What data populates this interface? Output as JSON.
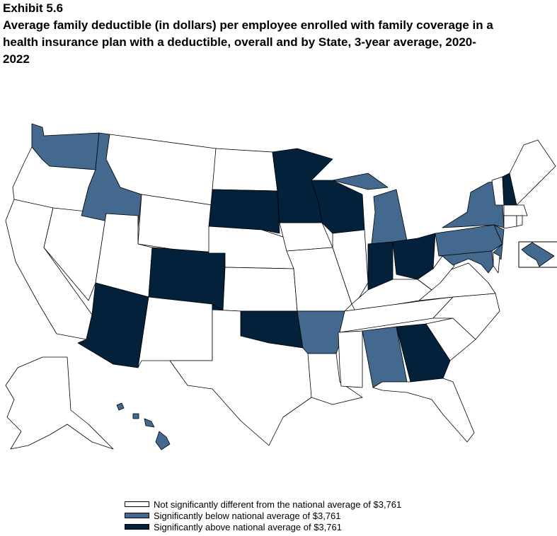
{
  "exhibit": "Exhibit 5.6",
  "title": "Average family deductible (in dollars) per employee enrolled with family coverage in a health insurance plan with a deductible, overall and by State, 3-year average, 2020-2022",
  "colors": {
    "not_significant": "#ffffff",
    "below": "#43698f",
    "above": "#03213b"
  },
  "legend": [
    {
      "category": "not_significant",
      "label": "Not significantly different from the national average of $3,761"
    },
    {
      "category": "below",
      "label": "Significantly below national average of $3,761"
    },
    {
      "category": "above",
      "label": "Significantly above national average of $3,761"
    }
  ],
  "national_average": "$3,761",
  "states": {
    "WA": "below",
    "OR": "not_significant",
    "CA": "not_significant",
    "NV": "not_significant",
    "ID": "below",
    "MT": "not_significant",
    "WY": "not_significant",
    "UT": "not_significant",
    "CO": "above",
    "AZ": "above",
    "NM": "not_significant",
    "ND": "not_significant",
    "SD": "above",
    "NE": "not_significant",
    "KS": "not_significant",
    "OK": "above",
    "TX": "not_significant",
    "MN": "above",
    "IA": "not_significant",
    "MO": "not_significant",
    "AR": "below",
    "LA": "not_significant",
    "WI": "above",
    "IL": "not_significant",
    "MI": "below",
    "IN": "above",
    "OH": "above",
    "KY": "not_significant",
    "TN": "not_significant",
    "MS": "not_significant",
    "AL": "below",
    "GA": "above",
    "FL": "not_significant",
    "SC": "not_significant",
    "NC": "not_significant",
    "VA": "not_significant",
    "WV": "not_significant",
    "PA": "below",
    "NY": "below",
    "NJ": "below",
    "DE": "not_significant",
    "MD": "below",
    "DC": "below",
    "VT": "not_significant",
    "NH": "above",
    "ME": "not_significant",
    "MA": "not_significant",
    "CT": "not_significant",
    "RI": "not_significant",
    "AK": "not_significant",
    "HI": "below"
  }
}
